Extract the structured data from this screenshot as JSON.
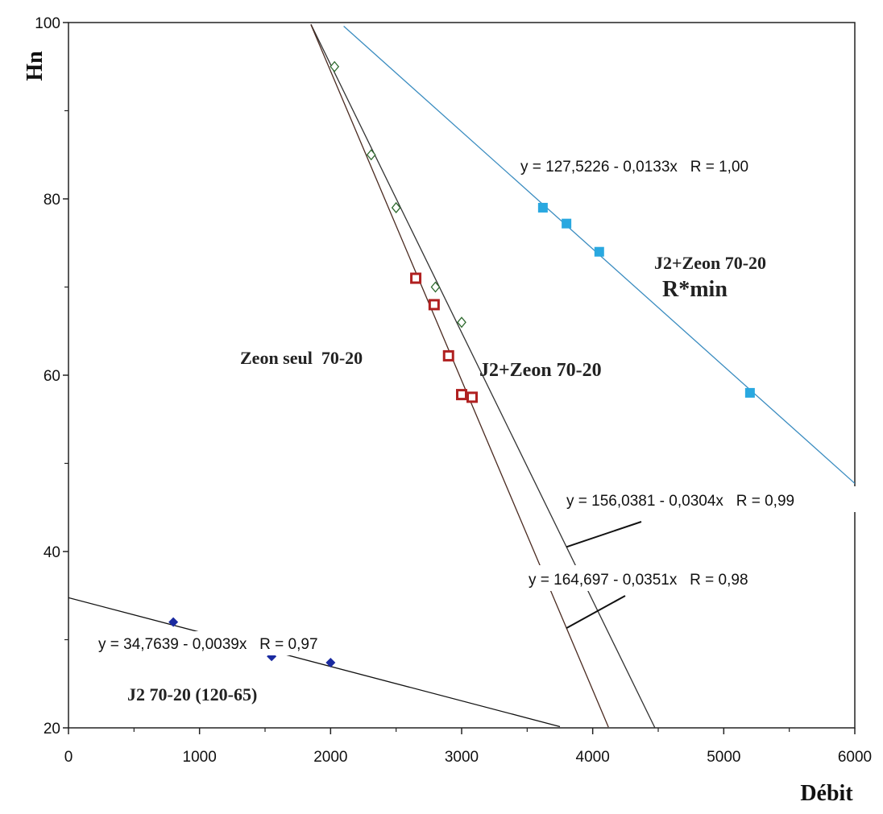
{
  "chart_data": {
    "type": "scatter",
    "xlabel": "Débit",
    "ylabel": "Hn",
    "xlim": [
      0,
      6000
    ],
    "ylim": [
      20,
      100
    ],
    "x_ticks": [
      "0",
      "1000",
      "2000",
      "3000",
      "4000",
      "5000",
      "6000"
    ],
    "y_ticks": [
      "20",
      "40",
      "60",
      "80",
      "100"
    ],
    "grid": false,
    "series": [
      {
        "name": "J2+Zeon 70-20",
        "sub_label": "R*min",
        "color": "#29a8e0",
        "line_color": "#3a8cc0",
        "marker": "square",
        "points": [
          {
            "x": 3620,
            "y": 79
          },
          {
            "x": 3800,
            "y": 77.2
          },
          {
            "x": 4050,
            "y": 74
          },
          {
            "x": 5200,
            "y": 58
          }
        ],
        "fit": {
          "equation": "y = 127,5226 - 0,0133x   R = 1,00",
          "a": 127.5226,
          "b": 0.0133,
          "x_from": 2100,
          "x_to": 6000
        }
      },
      {
        "name": "J2+Zeon 70-20",
        "color": "#2e6a2e",
        "line_color": "#333333",
        "marker": "diamond-open",
        "points": [
          {
            "x": 2030,
            "y": 95
          },
          {
            "x": 2310,
            "y": 85
          },
          {
            "x": 2500,
            "y": 79
          },
          {
            "x": 2800,
            "y": 70
          },
          {
            "x": 3000,
            "y": 66
          }
        ],
        "fit": {
          "equation": "y = 156,0381 - 0,0304x   R = 0,99",
          "a": 156.0381,
          "b": 0.0304,
          "x_from": 1850,
          "x_to": 4500
        }
      },
      {
        "name": "Zeon seul  70-20",
        "color": "#b02020",
        "line_color": "#4a2a20",
        "marker": "square-open",
        "points": [
          {
            "x": 2650,
            "y": 71
          },
          {
            "x": 2790,
            "y": 68
          },
          {
            "x": 2900,
            "y": 62.2
          },
          {
            "x": 3000,
            "y": 57.8
          },
          {
            "x": 3080,
            "y": 57.5
          }
        ],
        "fit": {
          "equation": "y = 164,697 - 0,0351x   R = 0,98",
          "a": 164.697,
          "b": 0.0351,
          "x_from": 1850,
          "x_to": 4120
        }
      },
      {
        "name": "J2 70-20 (120-65)",
        "color": "#1a2aa0",
        "line_color": "#111111",
        "marker": "diamond",
        "points": [
          {
            "x": 800,
            "y": 32
          },
          {
            "x": 1550,
            "y": 28.1
          },
          {
            "x": 2000,
            "y": 27.4
          }
        ],
        "fit": {
          "equation": "y = 34,7639 - 0,0039x   R = 0,97",
          "a": 34.7639,
          "b": 0.0039,
          "x_from": 0,
          "x_to": 3750
        }
      }
    ]
  }
}
